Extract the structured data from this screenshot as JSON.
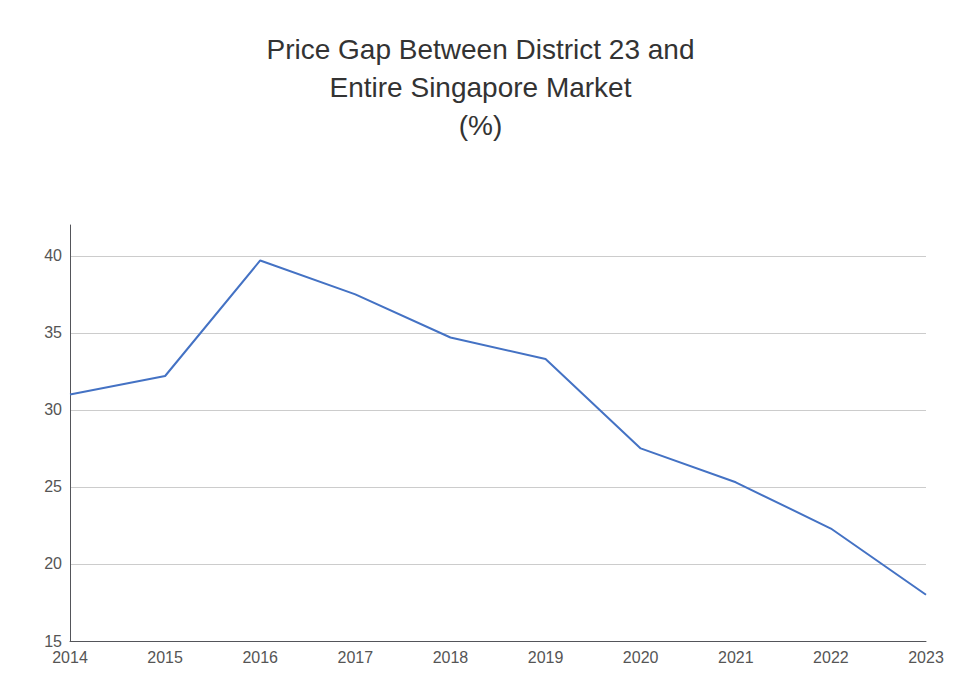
{
  "chart_data": {
    "type": "line",
    "title": "Price Gap Between District 23 and\nEntire Singapore Market\n(%)",
    "x": [
      2014,
      2015,
      2016,
      2017,
      2018,
      2019,
      2020,
      2021,
      2022,
      2023
    ],
    "values": [
      31.0,
      32.2,
      39.7,
      37.5,
      34.7,
      33.3,
      27.5,
      25.3,
      22.3,
      18.0
    ],
    "color": "#4472C4",
    "xlim": [
      2014,
      2023
    ],
    "xticks": [
      2014,
      2015,
      2016,
      2017,
      2018,
      2019,
      2020,
      2021,
      2022,
      2023
    ],
    "ylim": [
      15,
      42
    ],
    "yticks": [
      15,
      20,
      25,
      30,
      35,
      40
    ],
    "grid": true
  }
}
